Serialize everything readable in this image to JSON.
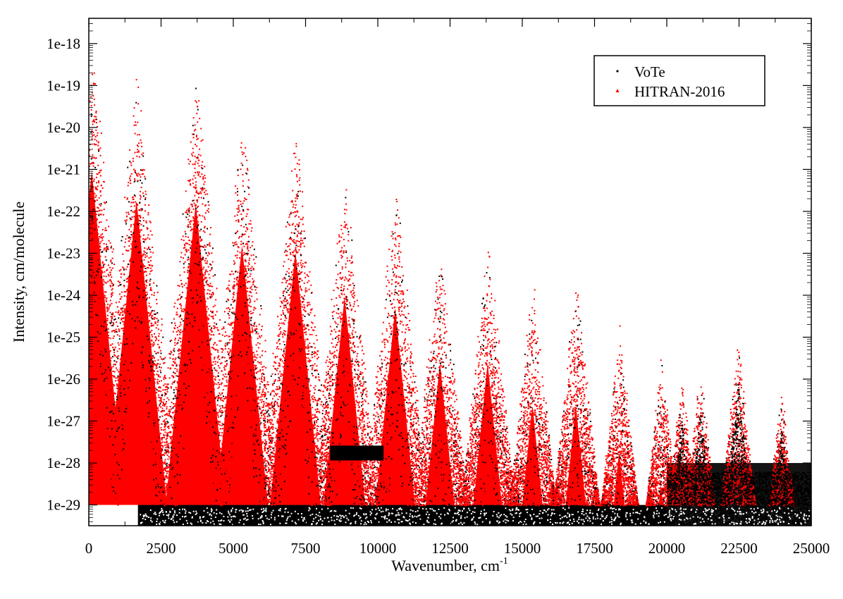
{
  "chart_data": {
    "type": "scatter",
    "xlabel": "Wavenumber, cm",
    "xlabel_superscript": "-1",
    "ylabel": "Intensity, cm/molecule",
    "x_scale": "linear",
    "y_scale": "log",
    "xlim": [
      0,
      25000
    ],
    "ylim": [
      3.2e-30,
      4e-18
    ],
    "x_ticks": [
      0,
      2500,
      5000,
      7500,
      10000,
      12500,
      15000,
      17500,
      20000,
      22500,
      25000
    ],
    "x_tick_labels": [
      "0",
      "2500",
      "5000",
      "7500",
      "10000",
      "12500",
      "15000",
      "17500",
      "20000",
      "22500",
      "25000"
    ],
    "y_ticks": [
      1e-18,
      1e-19,
      1e-20,
      1e-21,
      1e-22,
      1e-23,
      1e-24,
      1e-25,
      1e-26,
      1e-27,
      1e-28,
      1e-29
    ],
    "y_tick_labels": [
      "1e-18",
      "1e-19",
      "1e-20",
      "1e-21",
      "1e-22",
      "1e-23",
      "1e-24",
      "1e-25",
      "1e-26",
      "1e-27",
      "1e-28",
      "1e-29"
    ],
    "grid": false,
    "legend_position": "top-right",
    "series": [
      {
        "name": "VoTe",
        "color": "#000000",
        "marker": "dot",
        "band_peaks_cm1": [
          100,
          1650,
          3700,
          5300,
          7150,
          8850,
          10600,
          12150,
          13800,
          15350,
          16850,
          18350,
          19800,
          20500,
          21150,
          22450,
          23950
        ],
        "band_peak_intensity": [
          1.5e-18,
          3e-19,
          2.5e-19,
          2.5e-20,
          1.8e-20,
          1.5e-21,
          8e-22,
          4e-23,
          4e-23,
          4e-24,
          4e-24,
          3e-25,
          5e-26,
          2e-26,
          3e-26,
          1.5e-25,
          1e-26
        ],
        "intensity_floor": 1e-29,
        "floor_range_cm1": [
          2000,
          20000
        ],
        "elevated_region_cm1": [
          20000,
          25000
        ],
        "elevated_region_intensity": 1e-28
      },
      {
        "name": "HITRAN-2016",
        "color": "#ff0000",
        "marker": "triangle",
        "band_peaks_cm1": [
          100,
          1650,
          3700,
          5300,
          7150,
          8850,
          10600,
          12150,
          13800,
          15350,
          16850,
          18350,
          19800,
          20500,
          21150,
          22450,
          23950
        ],
        "band_peak_intensity": [
          1.5e-18,
          3e-19,
          2.5e-19,
          2.5e-20,
          1.8e-20,
          1.5e-21,
          8e-22,
          4e-23,
          4e-23,
          4e-24,
          4e-24,
          3e-25,
          5e-26,
          2e-26,
          3e-26,
          1.5e-25,
          1e-26
        ],
        "intensity_floor": 1e-29,
        "floor_range_cm1": [
          0,
          20000
        ]
      }
    ]
  }
}
